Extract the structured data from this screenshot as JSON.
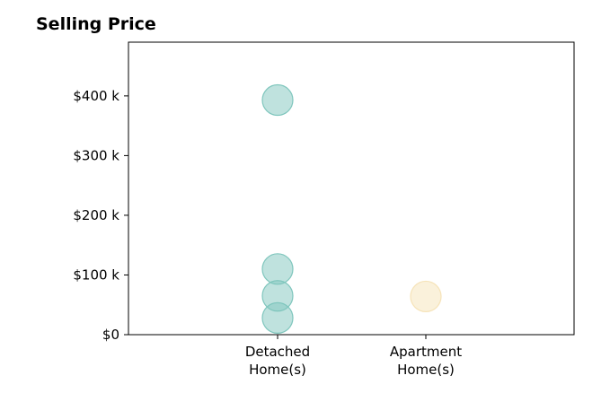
{
  "chart_data": {
    "type": "scatter",
    "title": "Selling Price",
    "xlabel": "",
    "ylabel": "",
    "categories": [
      "Detached\nHome(s)",
      "Apartment\nHome(s)"
    ],
    "ylim": [
      0,
      490000
    ],
    "y_ticks": [
      0,
      100000,
      200000,
      300000,
      400000
    ],
    "y_tick_labels": [
      "$0",
      "$100 k",
      "$200 k",
      "$300 k",
      "$400 k"
    ],
    "grid": false,
    "series": [
      {
        "category": "Detached\nHome(s)",
        "color": "#7fc6bd",
        "values": [
          393000,
          110000,
          65000,
          28000
        ]
      },
      {
        "category": "Apartment\nHome(s)",
        "color": "#f6e3b8",
        "values": [
          64000
        ]
      }
    ]
  }
}
